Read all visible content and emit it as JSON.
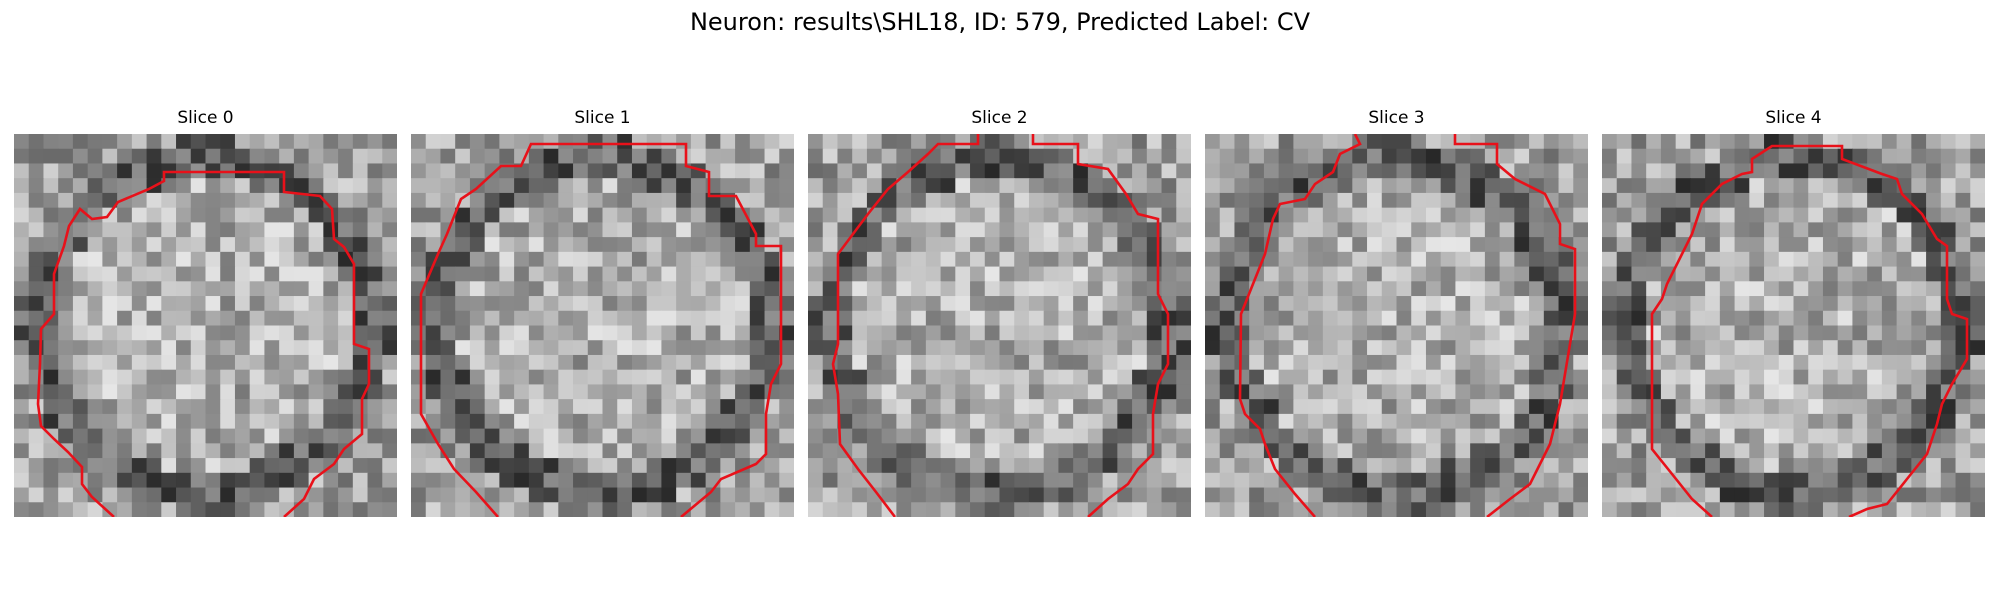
{
  "figure": {
    "title": "Neuron: results\\SHL18, ID: 579, Predicted Label: CV"
  },
  "panels": [
    {
      "title": "Slice 0"
    },
    {
      "title": "Slice 1"
    },
    {
      "title": "Slice 2"
    },
    {
      "title": "Slice 3"
    },
    {
      "title": "Slice 4"
    }
  ],
  "colors": {
    "contour": "#e8111a",
    "background": "#ffffff"
  },
  "image": {
    "colormap": "grayscale",
    "grid_cells": 26
  }
}
